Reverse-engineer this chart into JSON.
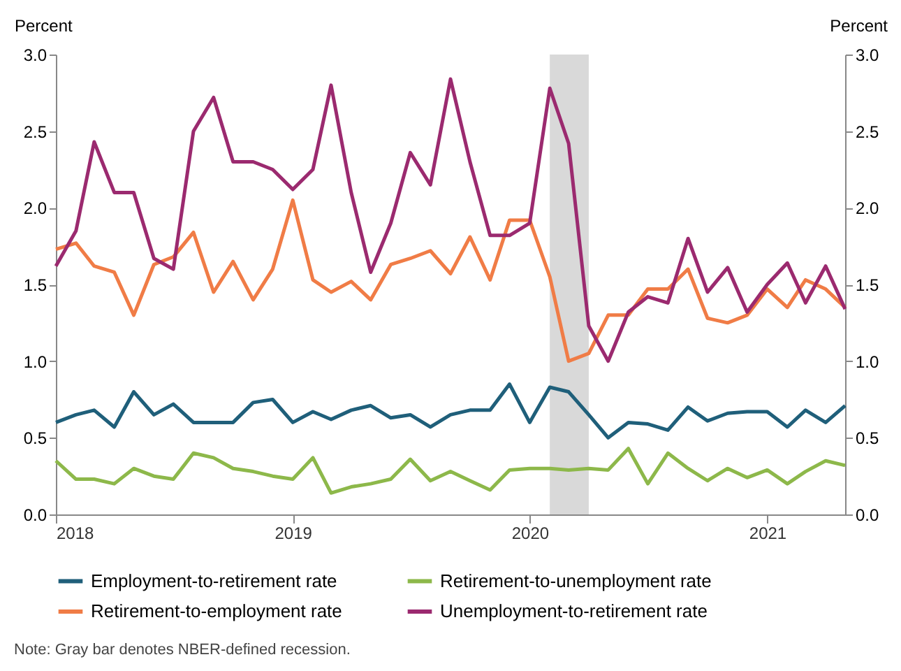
{
  "chart_data": {
    "type": "line",
    "ylabel": "Percent",
    "y2label": "Percent",
    "x": [
      "2018-01",
      "2018-02",
      "2018-03",
      "2018-04",
      "2018-05",
      "2018-06",
      "2018-07",
      "2018-08",
      "2018-09",
      "2018-10",
      "2018-11",
      "2018-12",
      "2019-01",
      "2019-02",
      "2019-03",
      "2019-04",
      "2019-05",
      "2019-06",
      "2019-07",
      "2019-08",
      "2019-09",
      "2019-10",
      "2019-11",
      "2019-12",
      "2020-01",
      "2020-02",
      "2020-03",
      "2020-04",
      "2020-05",
      "2020-06",
      "2020-07",
      "2020-08",
      "2020-09",
      "2020-10",
      "2020-11",
      "2020-12",
      "2021-01",
      "2021-02",
      "2021-03",
      "2021-04",
      "2021-05"
    ],
    "series": [
      {
        "name": "Employment-to-retirement rate",
        "color": "#1f5f7a",
        "values": [
          0.6,
          0.65,
          0.68,
          0.57,
          0.8,
          0.65,
          0.72,
          0.6,
          0.6,
          0.6,
          0.73,
          0.75,
          0.6,
          0.67,
          0.62,
          0.68,
          0.71,
          0.63,
          0.65,
          0.57,
          0.65,
          0.68,
          0.68,
          0.85,
          0.6,
          0.83,
          0.8,
          0.65,
          0.5,
          0.6,
          0.59,
          0.55,
          0.7,
          0.61,
          0.66,
          0.67,
          0.67,
          0.57,
          0.68,
          0.6,
          0.71
        ]
      },
      {
        "name": "Retirement-to-unemployment rate",
        "color": "#8db84a",
        "values": [
          0.35,
          0.23,
          0.23,
          0.2,
          0.3,
          0.25,
          0.23,
          0.4,
          0.37,
          0.3,
          0.28,
          0.25,
          0.23,
          0.37,
          0.14,
          0.18,
          0.2,
          0.23,
          0.36,
          0.22,
          0.28,
          0.22,
          0.16,
          0.29,
          0.3,
          0.3,
          0.29,
          0.3,
          0.29,
          0.43,
          0.2,
          0.4,
          0.3,
          0.22,
          0.3,
          0.24,
          0.29,
          0.2,
          0.28,
          0.35,
          0.32
        ]
      },
      {
        "name": "Retirement-to-employment rate",
        "color": "#f07c46",
        "values": [
          1.73,
          1.77,
          1.62,
          1.58,
          1.3,
          1.63,
          1.68,
          1.84,
          1.45,
          1.65,
          1.4,
          1.6,
          2.05,
          1.53,
          1.45,
          1.52,
          1.4,
          1.63,
          1.67,
          1.72,
          1.57,
          1.81,
          1.53,
          1.92,
          1.92,
          1.55,
          1.0,
          1.05,
          1.3,
          1.3,
          1.47,
          1.47,
          1.6,
          1.28,
          1.25,
          1.3,
          1.47,
          1.35,
          1.53,
          1.47,
          1.35
        ]
      },
      {
        "name": "Unemployment-to-retirement rate",
        "color": "#9b2a6f",
        "values": [
          1.62,
          1.85,
          2.43,
          2.1,
          2.1,
          1.67,
          1.6,
          2.5,
          2.72,
          2.3,
          2.3,
          2.25,
          2.12,
          2.25,
          2.8,
          2.1,
          1.58,
          1.9,
          2.36,
          2.15,
          2.84,
          2.3,
          1.82,
          1.82,
          1.9,
          2.78,
          2.42,
          1.23,
          1.0,
          1.32,
          1.42,
          1.38,
          1.8,
          1.45,
          1.61,
          1.32,
          1.5,
          1.64,
          1.38,
          1.62,
          1.34
        ]
      }
    ],
    "xlim": [
      "2018-01",
      "2021-05"
    ],
    "xticks": [
      "2018",
      "2019",
      "2020",
      "2021"
    ],
    "ylim": [
      0,
      3
    ],
    "yticks": [
      {
        "value": 0,
        "label": "0.0"
      },
      0.5,
      {
        "value": 1,
        "label": "1.0"
      },
      1.5,
      {
        "value": 2,
        "label": "2.0"
      },
      2.5,
      {
        "value": 3,
        "label": "3.0"
      }
    ],
    "y2lim": [
      0,
      3
    ],
    "y2ticks": [
      {
        "value": 0,
        "label": "0.0"
      },
      0.5,
      {
        "value": 1,
        "label": "1.0"
      },
      1.5,
      {
        "value": 2,
        "label": "2.0"
      },
      2.5,
      {
        "value": 3,
        "label": "3.0"
      }
    ],
    "bands": [
      {
        "axis": "x",
        "from": "2020-02",
        "to": "2020-04",
        "color": "#d9d9d9"
      }
    ],
    "grid": false,
    "legend": "bottom",
    "line_style": "solid",
    "marker": "none",
    "annotations": [
      "Note: Gray bar denotes NBER-defined recession."
    ]
  }
}
